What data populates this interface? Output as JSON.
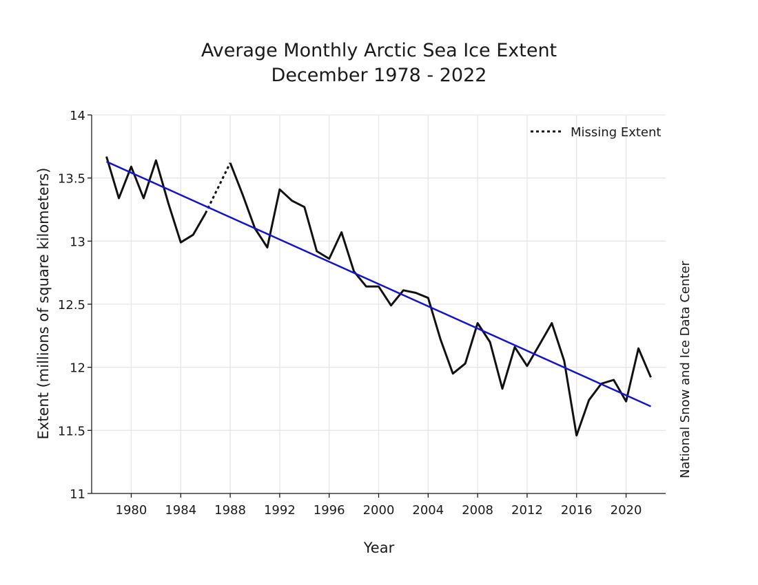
{
  "chart_data": {
    "type": "line",
    "title_line1": "Average Monthly Arctic Sea Ice Extent",
    "title_line2": "December 1978 - 2022",
    "xlabel": "Year",
    "ylabel": "Extent (millions of square kilometers)",
    "credit": "National Snow and Ice Data Center",
    "xlim": [
      1976.8,
      2023.2
    ],
    "ylim": [
      11,
      14
    ],
    "x_ticks": [
      1980,
      1984,
      1988,
      1992,
      1996,
      2000,
      2004,
      2008,
      2012,
      2016,
      2020
    ],
    "y_ticks": [
      11,
      11.5,
      12,
      12.5,
      13,
      13.5,
      14
    ],
    "y_tick_labels": [
      "11",
      "11.5",
      "12",
      "12.5",
      "13",
      "13.5",
      "14"
    ],
    "grid": true,
    "legend": {
      "placement": "top-right",
      "entries": [
        {
          "label": "Missing Extent",
          "style": "dotted"
        }
      ]
    },
    "series": [
      {
        "id": "extent",
        "color": "#111111",
        "segments": [
          {
            "x": [
              1978,
              1979,
              1980,
              1981,
              1982,
              1983,
              1984,
              1985,
              1986
            ],
            "y": [
              13.67,
              13.34,
              13.59,
              13.34,
              13.64,
              13.3,
              12.99,
              13.05,
              13.22
            ]
          },
          {
            "x": [
              1988,
              1989,
              1990,
              1991,
              1992,
              1993,
              1994,
              1995,
              1996,
              1997,
              1998,
              1999,
              2000,
              2001,
              2002,
              2003,
              2004,
              2005,
              2006,
              2007,
              2008,
              2009,
              2010,
              2011,
              2012,
              2013,
              2014,
              2015,
              2016,
              2017,
              2018,
              2019,
              2020,
              2021,
              2022
            ],
            "y": [
              13.62,
              13.37,
              13.1,
              12.95,
              13.41,
              13.32,
              13.27,
              12.92,
              12.86,
              13.07,
              12.76,
              12.64,
              12.64,
              12.49,
              12.61,
              12.59,
              12.55,
              12.22,
              11.95,
              12.03,
              12.35,
              12.2,
              11.83,
              12.16,
              12.01,
              12.18,
              12.35,
              12.05,
              11.46,
              11.74,
              11.87,
              11.9,
              11.73,
              12.15,
              11.92
            ]
          }
        ]
      },
      {
        "id": "missing",
        "color": "#111111",
        "dash": "dotted",
        "x": [
          1986,
          1988
        ],
        "y": [
          13.22,
          13.62
        ]
      },
      {
        "id": "trend",
        "color": "#1414cc",
        "x": [
          1978,
          2022
        ],
        "y": [
          13.63,
          11.69
        ]
      }
    ]
  }
}
